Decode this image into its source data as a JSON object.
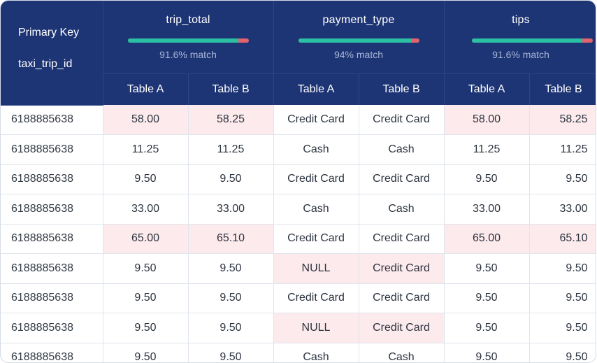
{
  "header": {
    "primary_key_label": "Primary Key",
    "primary_key_column": "taxi_trip_id",
    "groups": [
      {
        "name": "trip_total",
        "match_text": "91.6% match",
        "match_fraction": 0.916
      },
      {
        "name": "payment_type",
        "match_text": "94% match",
        "match_fraction": 0.94
      },
      {
        "name": "tips",
        "match_text": "91.6% match",
        "match_fraction": 0.916
      }
    ],
    "sub_headers": [
      "Table A",
      "Table B",
      "Table A",
      "Table B",
      "Table A",
      "Table B"
    ]
  },
  "colors": {
    "header_bg": "#1e3575",
    "match_bar": "#2bbfa3",
    "mismatch_bar": "#e0636d",
    "mismatch_cell": "#fdeaec"
  },
  "rows": [
    {
      "key": "6188885638",
      "cells": [
        "58.00",
        "58.25",
        "Credit Card",
        "Credit Card",
        "58.00",
        "58.25"
      ],
      "mismatch": [
        true,
        true,
        false,
        false,
        true,
        true
      ]
    },
    {
      "key": "6188885638",
      "cells": [
        "11.25",
        "11.25",
        "Cash",
        "Cash",
        "11.25",
        "11.25"
      ],
      "mismatch": [
        false,
        false,
        false,
        false,
        false,
        false
      ]
    },
    {
      "key": "6188885638",
      "cells": [
        "9.50",
        "9.50",
        "Credit Card",
        "Credit Card",
        "9.50",
        "9.50"
      ],
      "mismatch": [
        false,
        false,
        false,
        false,
        false,
        false
      ]
    },
    {
      "key": "6188885638",
      "cells": [
        "33.00",
        "33.00",
        "Cash",
        "Cash",
        "33.00",
        "33.00"
      ],
      "mismatch": [
        false,
        false,
        false,
        false,
        false,
        false
      ]
    },
    {
      "key": "6188885638",
      "cells": [
        "65.00",
        "65.10",
        "Credit Card",
        "Credit Card",
        "65.00",
        "65.10"
      ],
      "mismatch": [
        true,
        true,
        false,
        false,
        true,
        true
      ]
    },
    {
      "key": "6188885638",
      "cells": [
        "9.50",
        "9.50",
        "NULL",
        "Credit Card",
        "9.50",
        "9.50"
      ],
      "mismatch": [
        false,
        false,
        true,
        true,
        false,
        false
      ]
    },
    {
      "key": "6188885638",
      "cells": [
        "9.50",
        "9.50",
        "Credit Card",
        "Credit Card",
        "9.50",
        "9.50"
      ],
      "mismatch": [
        false,
        false,
        false,
        false,
        false,
        false
      ]
    },
    {
      "key": "6188885638",
      "cells": [
        "9.50",
        "9.50",
        "NULL",
        "Credit Card",
        "9.50",
        "9.50"
      ],
      "mismatch": [
        false,
        false,
        true,
        true,
        false,
        false
      ]
    },
    {
      "key": "6188885638",
      "cells": [
        "9.50",
        "9.50",
        "Cash",
        "Cash",
        "9.50",
        "9.50"
      ],
      "mismatch": [
        false,
        false,
        false,
        false,
        false,
        false
      ]
    }
  ]
}
